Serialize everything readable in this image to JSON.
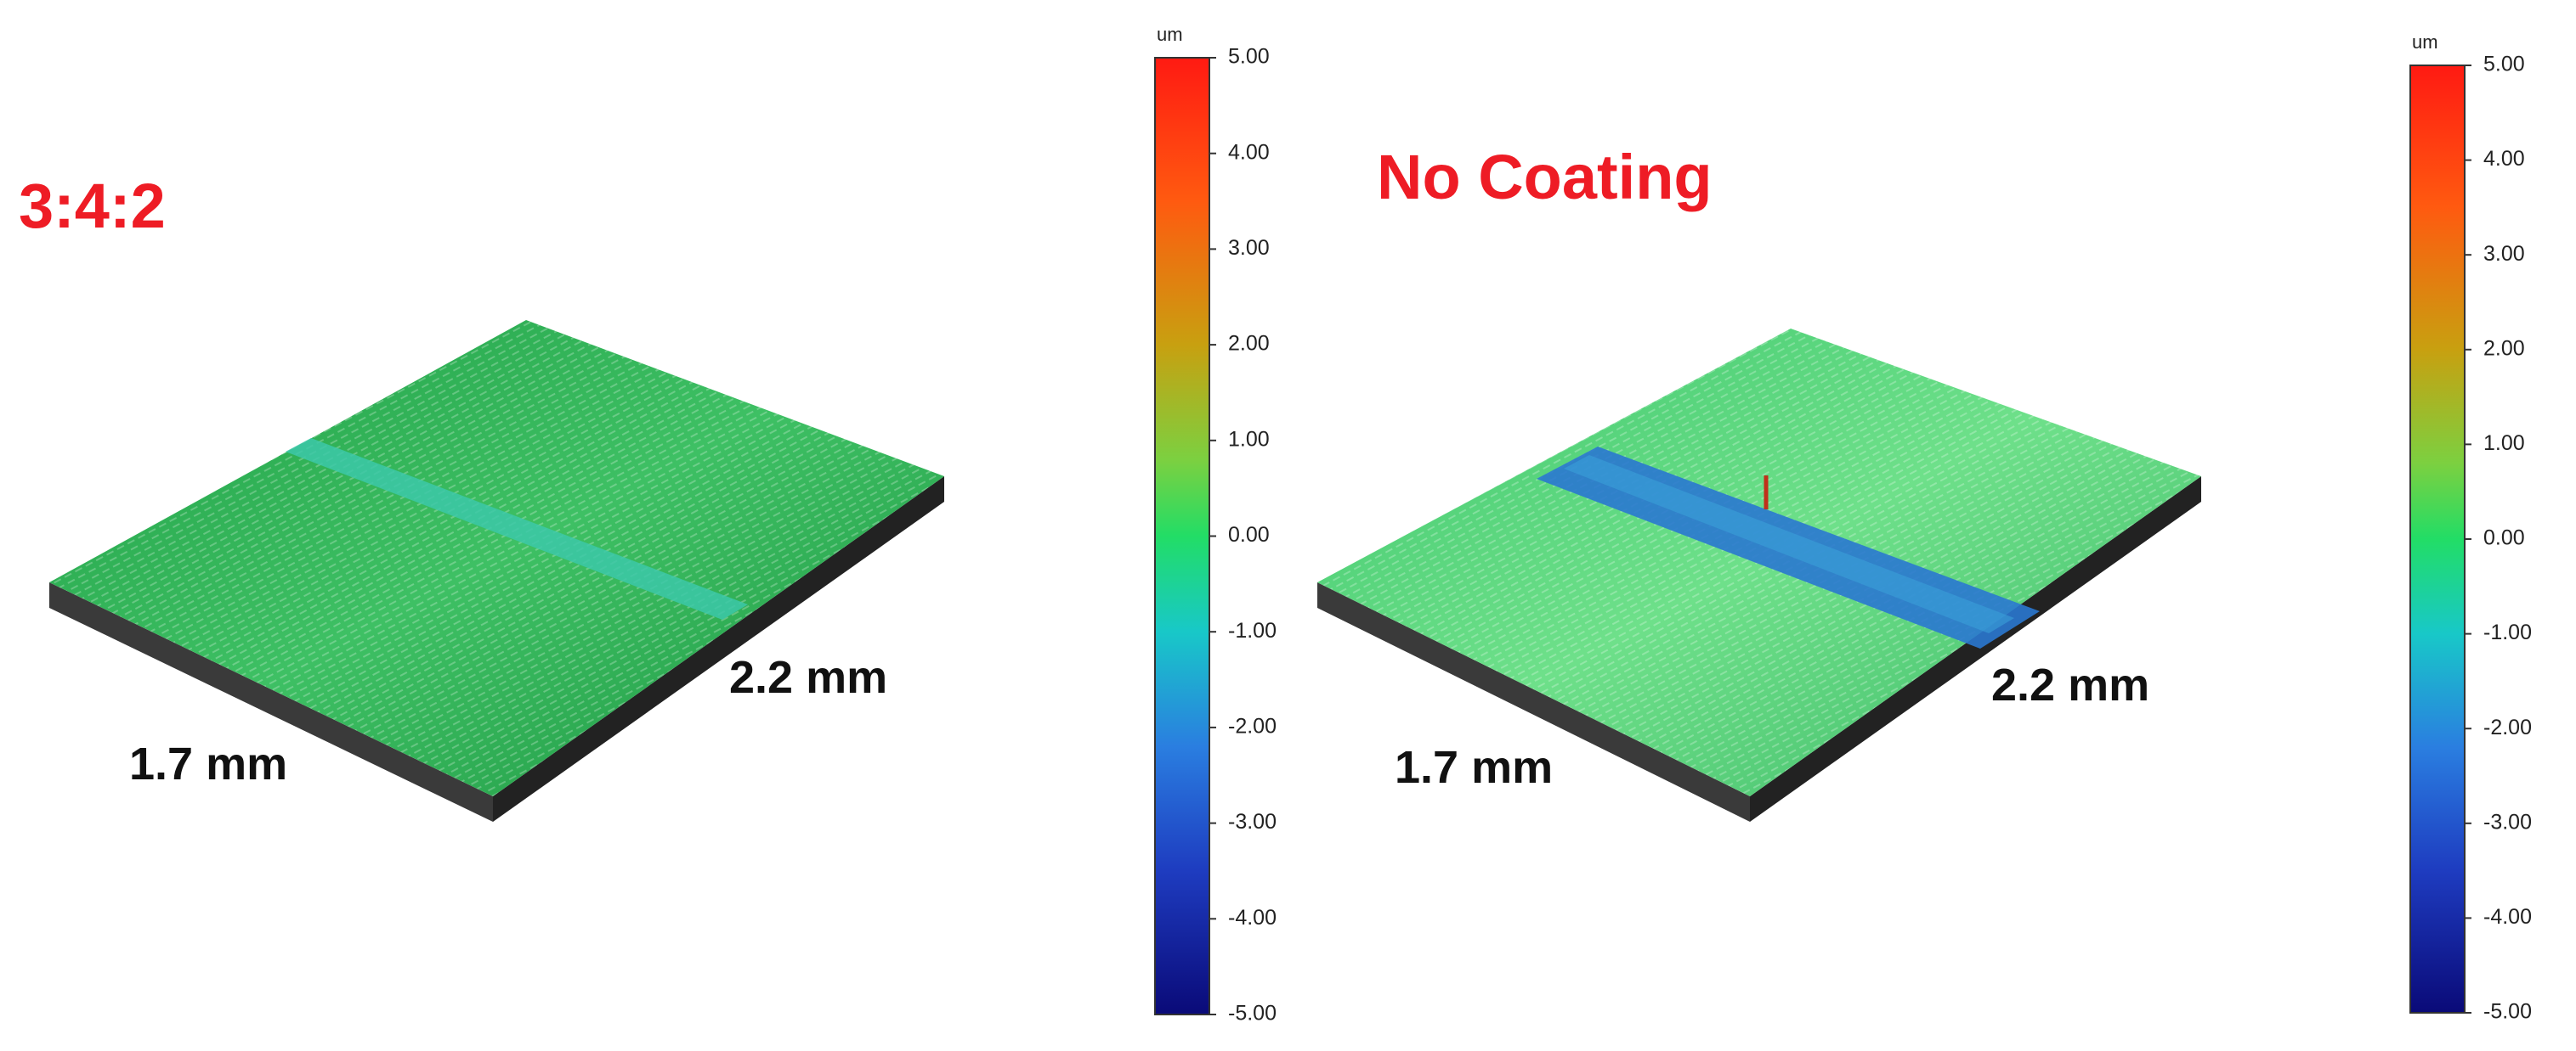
{
  "panels": [
    {
      "title": "3:4:2",
      "width_label": "1.7 mm",
      "length_label": "2.2 mm",
      "colorbar": {
        "unit": "um",
        "ticks": [
          "5.00",
          "4.00",
          "3.00",
          "2.00",
          "1.00",
          "0.00",
          "-1.00",
          "-2.00",
          "-3.00",
          "-4.00",
          "-5.00"
        ]
      }
    },
    {
      "title": "No Coating",
      "width_label": "1.7 mm",
      "length_label": "2.2 mm",
      "colorbar": {
        "unit": "um",
        "ticks": [
          "5.00",
          "4.00",
          "3.00",
          "2.00",
          "1.00",
          "0.00",
          "-1.00",
          "-2.00",
          "-3.00",
          "-4.00",
          "-5.00"
        ]
      }
    }
  ]
}
